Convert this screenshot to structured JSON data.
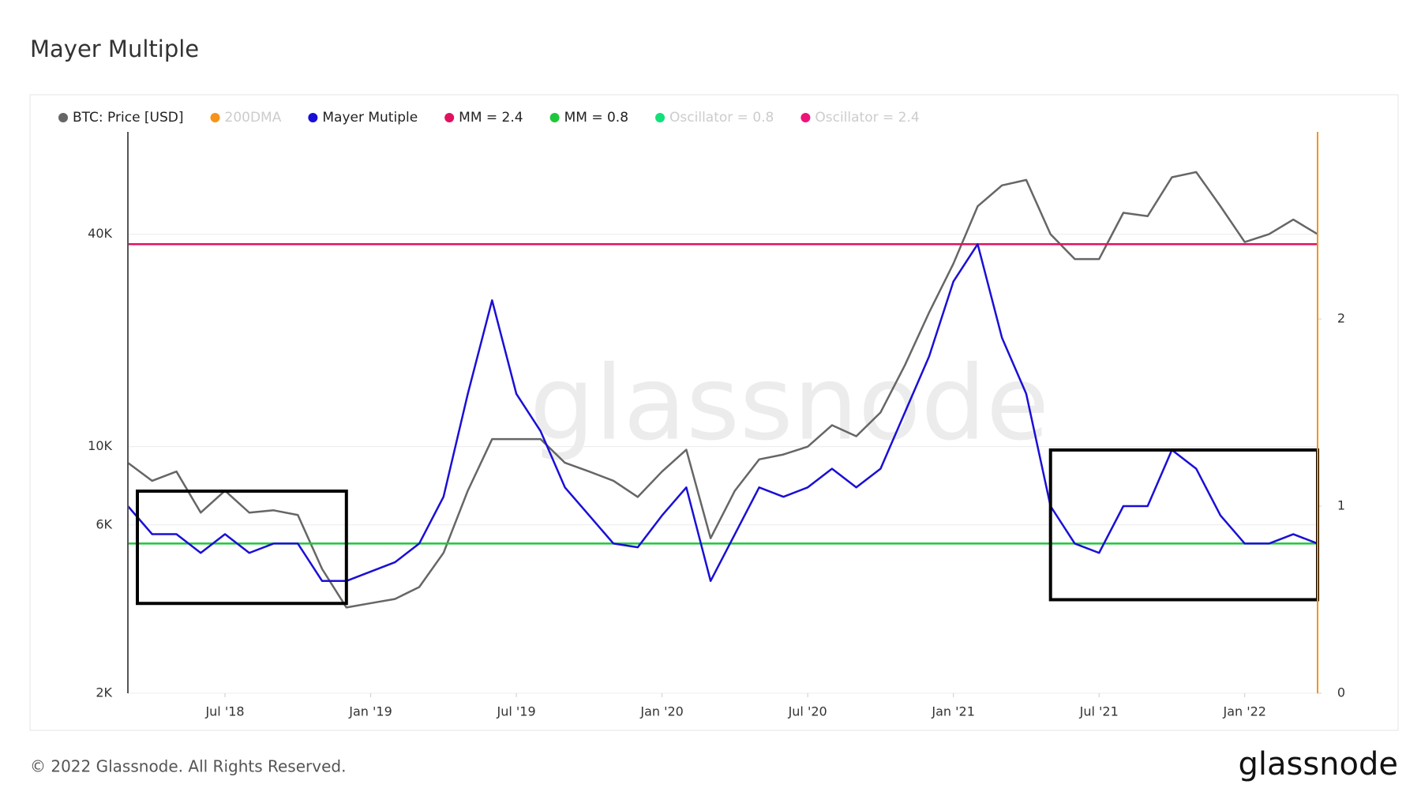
{
  "title": "Mayer Multiple",
  "footer": "© 2022 Glassnode. All Rights Reserved.",
  "logo": "glassnode",
  "watermark": "glassnode",
  "chart_data": {
    "type": "line",
    "x": [
      "2018-03",
      "2018-04",
      "2018-05",
      "2018-06",
      "2018-07",
      "2018-08",
      "2018-09",
      "2018-10",
      "2018-11",
      "2018-12",
      "2019-01",
      "2019-02",
      "2019-03",
      "2019-04",
      "2019-05",
      "2019-06",
      "2019-07",
      "2019-08",
      "2019-09",
      "2019-10",
      "2019-11",
      "2019-12",
      "2020-01",
      "2020-02",
      "2020-03",
      "2020-04",
      "2020-05",
      "2020-06",
      "2020-07",
      "2020-08",
      "2020-09",
      "2020-10",
      "2020-11",
      "2020-12",
      "2021-01",
      "2021-02",
      "2021-03",
      "2021-04",
      "2021-05",
      "2021-06",
      "2021-07",
      "2021-08",
      "2021-09",
      "2021-10",
      "2021-11",
      "2021-12",
      "2022-01",
      "2022-02",
      "2022-03",
      "2022-04"
    ],
    "xlim": [
      "2018-03",
      "2022-04"
    ],
    "xticks": [
      {
        "value": "2018-07",
        "label": "Jul '18"
      },
      {
        "value": "2019-01",
        "label": "Jan '19"
      },
      {
        "value": "2019-07",
        "label": "Jul '19"
      },
      {
        "value": "2020-01",
        "label": "Jan '20"
      },
      {
        "value": "2020-07",
        "label": "Jul '20"
      },
      {
        "value": "2021-01",
        "label": "Jan '21"
      },
      {
        "value": "2021-07",
        "label": "Jul '21"
      },
      {
        "value": "2022-01",
        "label": "Jan '22"
      }
    ],
    "ylim": [
      2000,
      78000
    ],
    "log_y": true,
    "yticks": [
      {
        "value": 2000,
        "label": "2K"
      },
      {
        "value": 6000,
        "label": "6K"
      },
      {
        "value": 10000,
        "label": "10K"
      },
      {
        "value": 40000,
        "label": "40K"
      }
    ],
    "y2lim": [
      0,
      3
    ],
    "y2ticks": [
      0,
      1,
      2
    ],
    "grid": true,
    "series": [
      {
        "name": "BTC: Price [USD]",
        "color": "#666666",
        "visible": true,
        "values": [
          9000,
          8000,
          8500,
          6500,
          7500,
          6500,
          6600,
          6400,
          4500,
          3500,
          3600,
          3700,
          4000,
          5000,
          7500,
          10500,
          10500,
          10500,
          9000,
          8500,
          8000,
          7200,
          8500,
          9800,
          5500,
          7500,
          9200,
          9500,
          10000,
          11500,
          10700,
          12500,
          17000,
          24000,
          33000,
          48000,
          55000,
          57000,
          40000,
          34000,
          34000,
          46000,
          45000,
          58000,
          60000,
          48000,
          38000,
          40000,
          44000,
          40000
        ]
      },
      {
        "name": "200DMA",
        "color": "#f7931a",
        "visible": false
      },
      {
        "name": "Mayer Mutiple",
        "color": "#1a0fd6",
        "visible": true,
        "axis": "y2",
        "values": [
          1.0,
          0.85,
          0.85,
          0.75,
          0.85,
          0.75,
          0.8,
          0.8,
          0.6,
          0.6,
          0.65,
          0.7,
          0.8,
          1.05,
          1.6,
          2.1,
          1.6,
          1.4,
          1.1,
          0.95,
          0.8,
          0.78,
          0.95,
          1.1,
          0.6,
          0.85,
          1.1,
          1.05,
          1.1,
          1.2,
          1.1,
          1.2,
          1.5,
          1.8,
          2.2,
          2.4,
          1.9,
          1.6,
          1.0,
          0.8,
          0.75,
          1.0,
          1.0,
          1.3,
          1.2,
          0.95,
          0.8,
          0.8,
          0.85,
          0.8
        ]
      },
      {
        "name": "MM = 2.4",
        "color": "#e0125f",
        "visible": true,
        "axis": "y2",
        "level": 2.4
      },
      {
        "name": "MM = 0.8",
        "color": "#1ec73a",
        "visible": true,
        "axis": "y2",
        "level": 0.8
      },
      {
        "name": "Oscillator = 0.8",
        "color": "#12e07a",
        "visible": false
      },
      {
        "name": "Oscillator = 2.4",
        "color": "#f0127a",
        "visible": false
      }
    ],
    "highlights": [
      {
        "xlim": [
          "2018-03",
          "2018-12"
        ],
        "y2lim": [
          0.48,
          1.08
        ]
      },
      {
        "xlim": [
          "2021-05",
          "2022-04"
        ],
        "y2lim": [
          0.5,
          1.3
        ]
      }
    ]
  }
}
